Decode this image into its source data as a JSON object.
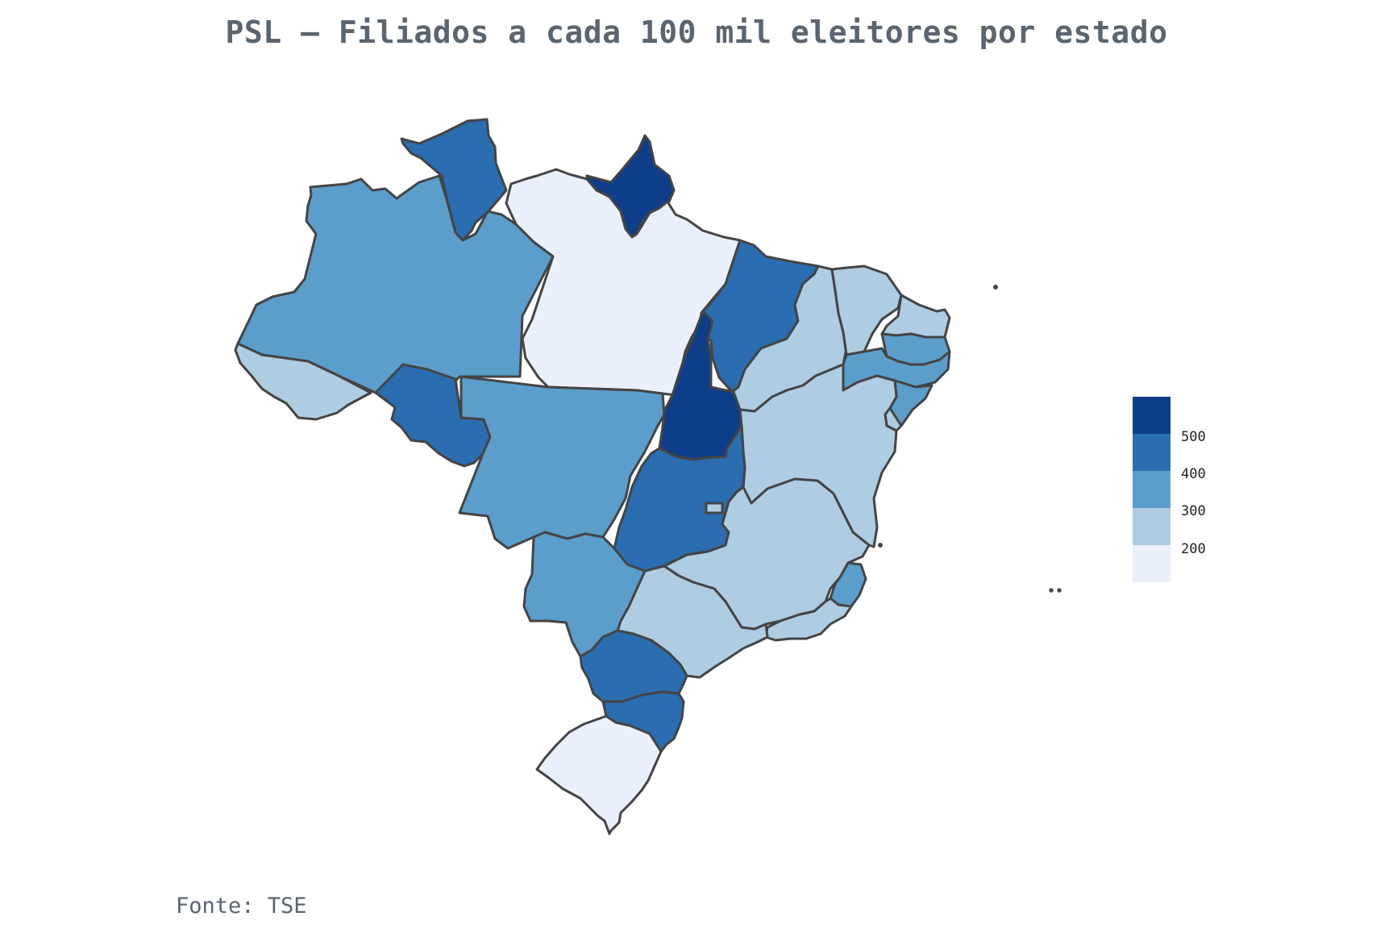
{
  "title": "PSL – Filiados a cada 100 mil eleitores por estado",
  "source": "Fonte: TSE",
  "colors": {
    "bin_0": "#eaf0fb",
    "bin_1": "#afcde2",
    "bin_2": "#5b9ecb",
    "bin_3": "#2a6db0",
    "bin_4": "#0e3e8a",
    "border": "#444444"
  },
  "legend": {
    "labels": [
      "500",
      "400",
      "300",
      "200"
    ]
  },
  "states": {
    "AM": {
      "bin": 2
    },
    "RR": {
      "bin": 3
    },
    "AP": {
      "bin": 4
    },
    "PA": {
      "bin": 0
    },
    "AC": {
      "bin": 1
    },
    "RO": {
      "bin": 3
    },
    "MT": {
      "bin": 2
    },
    "TO": {
      "bin": 4
    },
    "MA": {
      "bin": 3
    },
    "PI": {
      "bin": 1
    },
    "CE": {
      "bin": 1
    },
    "RN": {
      "bin": 1
    },
    "PB": {
      "bin": 2
    },
    "PE": {
      "bin": 2
    },
    "AL": {
      "bin": 2
    },
    "SE": {
      "bin": 1
    },
    "BA": {
      "bin": 1
    },
    "GO": {
      "bin": 3
    },
    "DF": {
      "bin": 1
    },
    "MG": {
      "bin": 1
    },
    "ES": {
      "bin": 2
    },
    "RJ": {
      "bin": 1
    },
    "SP": {
      "bin": 1
    },
    "MS": {
      "bin": 2
    },
    "PR": {
      "bin": 3
    },
    "SC": {
      "bin": 3
    },
    "RS": {
      "bin": 0
    }
  }
}
